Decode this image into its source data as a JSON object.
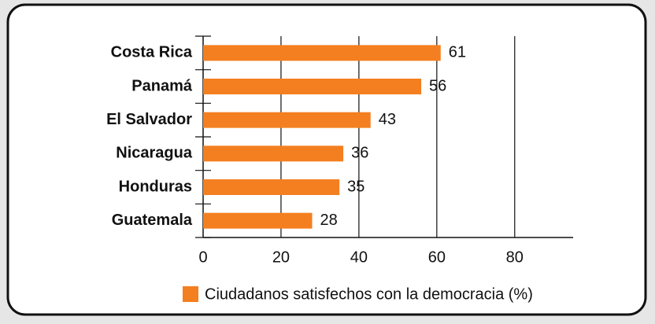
{
  "chart_data": {
    "type": "bar",
    "orientation": "horizontal",
    "categories": [
      "Costa Rica",
      "Panamá",
      "El Salvador",
      "Nicaragua",
      "Honduras",
      "Guatemala"
    ],
    "series": [
      {
        "name": "Ciudadanos satisfechos con la democracia (%)",
        "color": "#f47f20",
        "values": [
          61,
          56,
          43,
          36,
          35,
          28
        ]
      }
    ],
    "xlim": [
      0,
      95
    ],
    "xticks": [
      0,
      20,
      40,
      60,
      80
    ],
    "grid": true,
    "legend": "bottom"
  }
}
